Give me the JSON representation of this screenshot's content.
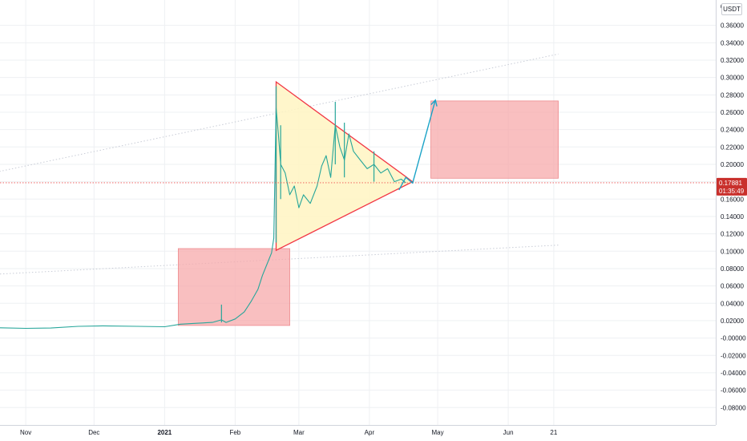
{
  "chart_data": {
    "type": "candlestick",
    "quote_unit": "USDT",
    "y_axis": {
      "range": [
        -0.089,
        0.38
      ],
      "ticks": [
        "0.36000",
        "0.34000",
        "0.32000",
        "0.30000",
        "0.28000",
        "0.26000",
        "0.24000",
        "0.22000",
        "0.20000",
        "0.18000",
        "0.16000",
        "0.14000",
        "0.12000",
        "0.10000",
        "0.08000",
        "0.06000",
        "0.04000",
        "0.02000",
        "-0.00000",
        "-0.02000",
        "-0.04000",
        "-0.06000",
        "-0.08000"
      ],
      "top_partial_label": "0"
    },
    "x_axis": {
      "type": "date",
      "range": [
        "2020-10-08",
        "2021-07-09"
      ],
      "ticks": [
        {
          "label": "Nov",
          "date": "2020-11-01"
        },
        {
          "label": "Dec",
          "date": "2020-12-01"
        },
        {
          "label": "2021",
          "date": "2021-01-01",
          "bold": true
        },
        {
          "label": "Feb",
          "date": "2021-02-01"
        },
        {
          "label": "Mar",
          "date": "2021-03-01"
        },
        {
          "label": "Apr",
          "date": "2021-04-01"
        },
        {
          "label": "May",
          "date": "2021-05-01"
        },
        {
          "label": "Jun",
          "date": "2021-06-01"
        },
        {
          "label": "21",
          "date": "2021-06-21"
        }
      ]
    },
    "price_series": [
      [
        "2020-10-08",
        0.0125
      ],
      [
        "2020-10-20",
        0.0118
      ],
      [
        "2020-11-01",
        0.0112
      ],
      [
        "2020-11-12",
        0.0115
      ],
      [
        "2020-11-24",
        0.0135
      ],
      [
        "2020-12-05",
        0.014
      ],
      [
        "2020-12-20",
        0.0135
      ],
      [
        "2021-01-01",
        0.013
      ],
      [
        "2021-01-08",
        0.016
      ],
      [
        "2021-01-15",
        0.017
      ],
      [
        "2021-01-22",
        0.018
      ],
      [
        "2021-01-26",
        0.021
      ],
      [
        "2021-01-28",
        0.018
      ],
      [
        "2021-02-01",
        0.022
      ],
      [
        "2021-02-05",
        0.03
      ],
      [
        "2021-02-08",
        0.042
      ],
      [
        "2021-02-11",
        0.056
      ],
      [
        "2021-02-13",
        0.072
      ],
      [
        "2021-02-15",
        0.085
      ],
      [
        "2021-02-17",
        0.098
      ],
      [
        "2021-02-18",
        0.115
      ],
      [
        "2021-02-19",
        0.265
      ],
      [
        "2021-02-20",
        0.235
      ],
      [
        "2021-02-21",
        0.2
      ],
      [
        "2021-02-23",
        0.19
      ],
      [
        "2021-02-25",
        0.165
      ],
      [
        "2021-02-27",
        0.175
      ],
      [
        "2021-03-01",
        0.15
      ],
      [
        "2021-03-03",
        0.165
      ],
      [
        "2021-03-06",
        0.155
      ],
      [
        "2021-03-09",
        0.175
      ],
      [
        "2021-03-11",
        0.198
      ],
      [
        "2021-03-13",
        0.21
      ],
      [
        "2021-03-15",
        0.185
      ],
      [
        "2021-03-17",
        0.245
      ],
      [
        "2021-03-19",
        0.22
      ],
      [
        "2021-03-21",
        0.205
      ],
      [
        "2021-03-23",
        0.235
      ],
      [
        "2021-03-25",
        0.215
      ],
      [
        "2021-03-28",
        0.205
      ],
      [
        "2021-03-31",
        0.195
      ],
      [
        "2021-04-03",
        0.2
      ],
      [
        "2021-04-06",
        0.19
      ],
      [
        "2021-04-09",
        0.195
      ],
      [
        "2021-04-12",
        0.18
      ],
      [
        "2021-04-15",
        0.183
      ],
      [
        "2021-04-17",
        0.1788
      ]
    ],
    "spikes": [
      [
        "2021-01-26",
        0.018,
        0.0385
      ],
      [
        "2021-02-19",
        0.11,
        0.29
      ],
      [
        "2021-02-21",
        0.16,
        0.245
      ],
      [
        "2021-03-17",
        0.2,
        0.272
      ],
      [
        "2021-03-21",
        0.185,
        0.248
      ],
      [
        "2021-04-03",
        0.18,
        0.215
      ]
    ],
    "current_price": {
      "value": 0.17881,
      "label": "0.17881",
      "countdown": "01:35:49"
    },
    "drawings": {
      "triangle": [
        [
          "2021-02-19",
          0.295
        ],
        [
          "2021-02-19",
          0.101
        ],
        [
          "2021-04-20",
          0.18
        ]
      ],
      "rect_lower": {
        "x": [
          "2021-01-07",
          "2021-02-25"
        ],
        "y": [
          0.0145,
          0.103
        ]
      },
      "rect_upper": {
        "x": [
          "2021-04-28",
          "2021-06-23"
        ],
        "y": [
          0.184,
          0.273
        ]
      },
      "forecast_path": [
        [
          "2021-04-14",
          0.1705
        ],
        [
          "2021-04-17",
          0.185
        ],
        [
          "2021-04-20",
          0.1785
        ],
        [
          "2021-04-30",
          0.274
        ]
      ],
      "trend_upper": [
        [
          "2020-10-08",
          0.185
        ],
        [
          "2021-06-23",
          0.327
        ]
      ],
      "trend_lower": [
        [
          "2020-10-08",
          0.072
        ],
        [
          "2021-06-23",
          0.107
        ]
      ]
    },
    "colors": {
      "price_line": "#26a69a",
      "triangle_stroke": "#f23645",
      "triangle_fill": "#fff4c2",
      "rect_fill": "#f7a9ab",
      "rect_stroke": "#ed8a8d",
      "forecast": "#1ba3c7",
      "current_price_line": "#ef5350",
      "current_price_box": "#c9302c",
      "grid": "#eef0f3",
      "trend": "#c8ccd6"
    },
    "grid": true
  }
}
